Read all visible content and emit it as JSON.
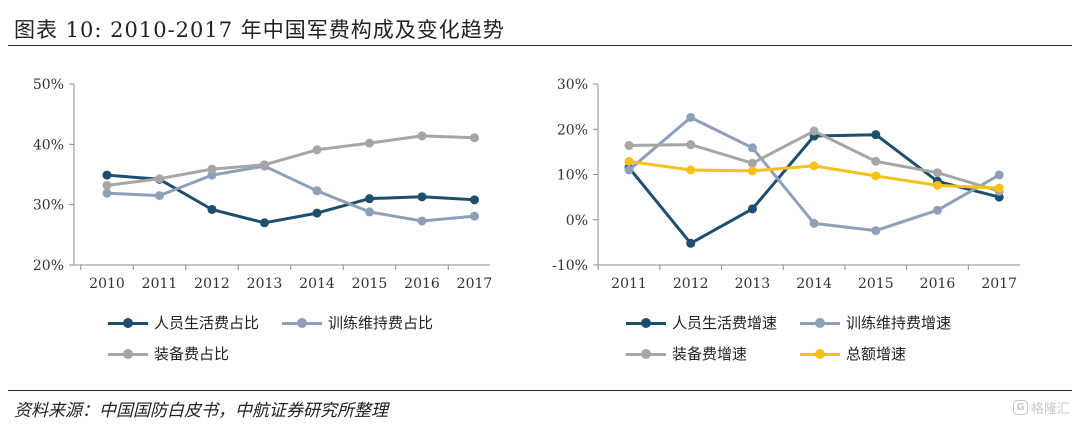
{
  "header": {
    "title": "图表 10: 2010-2017 年中国军费构成及变化趋势"
  },
  "footer": {
    "source": "资料来源：中国国防白皮书，中航证券研究所整理",
    "watermark": "格隆汇",
    "watermark_icon": "G"
  },
  "colors": {
    "dark_blue": "#1d4e6e",
    "gray_blue": "#8ea0b8",
    "light_gray": "#a6a6a6",
    "yellow": "#f6c21a",
    "axis": "#8c8c8c"
  },
  "chart_data": [
    {
      "type": "line",
      "x": [
        "2010",
        "2011",
        "2012",
        "2013",
        "2014",
        "2015",
        "2016",
        "2017"
      ],
      "ylim": [
        20,
        50
      ],
      "yticks": [
        "20%",
        "30%",
        "40%",
        "50%"
      ],
      "ytick_values": [
        20,
        30,
        40,
        50
      ],
      "grid": false,
      "legend": "bottom",
      "series": [
        {
          "name": "人员生活费占比",
          "color": "#1d4e6e",
          "values": [
            34.9,
            34.2,
            29.2,
            27.0,
            28.6,
            31.0,
            31.3,
            30.8
          ]
        },
        {
          "name": "训练维持费占比",
          "color": "#8ea0b8",
          "values": [
            31.9,
            31.5,
            34.9,
            36.4,
            32.3,
            28.8,
            27.3,
            28.1
          ]
        },
        {
          "name": "装备费占比",
          "color": "#a6a6a6",
          "values": [
            33.2,
            34.3,
            35.9,
            36.6,
            39.1,
            40.2,
            41.4,
            41.1
          ]
        }
      ]
    },
    {
      "type": "line",
      "x": [
        "2011",
        "2012",
        "2013",
        "2014",
        "2015",
        "2016",
        "2017"
      ],
      "ylim": [
        -10,
        30
      ],
      "yticks": [
        "-10%",
        "0%",
        "10%",
        "20%",
        "30%"
      ],
      "ytick_values": [
        -10,
        0,
        10,
        20,
        30
      ],
      "grid": false,
      "legend": "bottom",
      "series": [
        {
          "name": "人员生活费增速",
          "color": "#1d4e6e",
          "values": [
            11.5,
            -5.2,
            2.4,
            18.5,
            18.8,
            8.5,
            5.0
          ]
        },
        {
          "name": "训练维持费增速",
          "color": "#8ea0b8",
          "values": [
            11.0,
            22.6,
            15.9,
            -0.8,
            -2.4,
            2.1,
            9.9
          ]
        },
        {
          "name": "装备费增速",
          "color": "#a6a6a6",
          "values": [
            16.4,
            16.6,
            12.5,
            19.6,
            12.9,
            10.4,
            6.3
          ]
        },
        {
          "name": "总额增速",
          "color": "#f6c21a",
          "values": [
            12.9,
            11.0,
            10.8,
            11.9,
            9.7,
            7.6,
            7.0
          ]
        }
      ]
    }
  ]
}
